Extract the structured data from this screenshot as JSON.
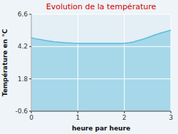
{
  "chart_data": {
    "type": "area",
    "title": "Evolution de la température",
    "xlabel": "heure par heure",
    "ylabel": "Température en °C",
    "x": [
      0,
      0.1,
      0.2,
      0.3,
      0.4,
      0.5,
      0.6,
      0.7,
      0.8,
      0.9,
      1.0,
      1.1,
      1.2,
      1.3,
      1.4,
      1.5,
      1.6,
      1.7,
      1.8,
      1.9,
      2.0,
      2.1,
      2.2,
      2.3,
      2.4,
      2.5,
      2.6,
      2.7,
      2.8,
      2.9,
      3.0
    ],
    "values": [
      4.85,
      4.78,
      4.72,
      4.65,
      4.6,
      4.55,
      4.52,
      4.49,
      4.47,
      4.45,
      4.44,
      4.44,
      4.44,
      4.44,
      4.44,
      4.44,
      4.44,
      4.44,
      4.44,
      4.44,
      4.44,
      4.48,
      4.55,
      4.65,
      4.75,
      4.87,
      5.0,
      5.12,
      5.22,
      5.32,
      5.42
    ],
    "color": "#5bbcdc",
    "xlim": [
      0,
      3
    ],
    "ylim": [
      -0.6,
      6.6
    ],
    "xticks": [
      0,
      1,
      2,
      3
    ],
    "yticks": [
      -0.6,
      1.8,
      4.2,
      6.6
    ],
    "grid": true
  }
}
